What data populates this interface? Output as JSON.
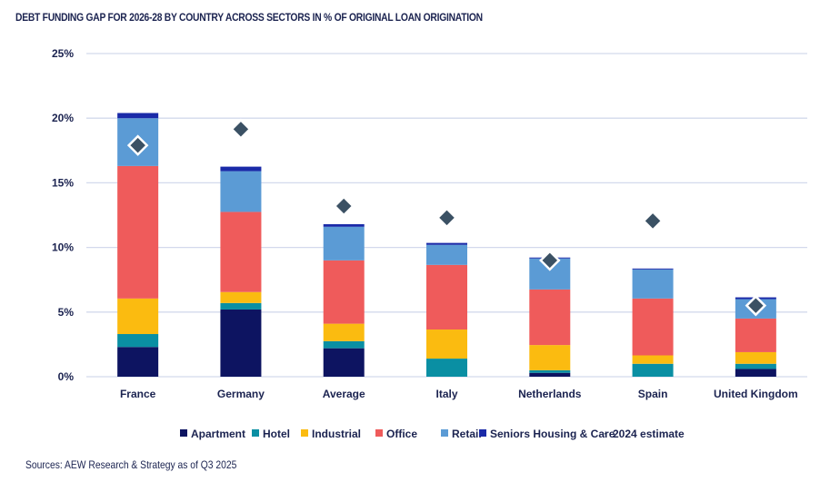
{
  "title": "DEBT FUNDING GAP FOR 2026-28 BY COUNTRY ACROSS SECTORS IN % OF ORIGINAL LOAN ORIGINATION",
  "source": "Sources: AEW Research & Strategy as of Q3 2025",
  "chart_data": {
    "type": "bar",
    "stacked": true,
    "title": "DEBT FUNDING GAP FOR 2026-28 BY COUNTRY ACROSS SECTORS IN % OF ORIGINAL LOAN ORIGINATION",
    "xlabel": "",
    "ylabel": "",
    "ylim": [
      0,
      25
    ],
    "yticks": [
      0,
      5,
      10,
      15,
      20,
      25
    ],
    "ytick_labels": [
      "0%",
      "5%",
      "10%",
      "15%",
      "20%",
      "25%"
    ],
    "grid": true,
    "legend_position": "bottom",
    "categories": [
      "France",
      "Germany",
      "Average",
      "Italy",
      "Netherlands",
      "Spain",
      "United Kingdom"
    ],
    "series": [
      {
        "name": "Apartment",
        "color": "#0d1461",
        "values": [
          2.3,
          5.2,
          2.2,
          0.0,
          0.3,
          0.0,
          0.6
        ]
      },
      {
        "name": "Hotel",
        "color": "#0a8fa3",
        "values": [
          1.0,
          0.5,
          0.55,
          1.4,
          0.2,
          1.0,
          0.4
        ]
      },
      {
        "name": "Industrial",
        "color": "#fbbb10",
        "values": [
          2.75,
          0.85,
          1.35,
          2.25,
          1.95,
          0.65,
          0.9
        ]
      },
      {
        "name": "Office",
        "color": "#ef5b5b",
        "values": [
          10.25,
          6.2,
          4.9,
          5.0,
          4.3,
          4.4,
          2.6
        ]
      },
      {
        "name": "Retail",
        "color": "#5b9bd5",
        "values": [
          3.7,
          3.15,
          2.6,
          1.55,
          2.4,
          2.25,
          1.5
        ]
      },
      {
        "name": "Seniors Housing & Care",
        "color": "#1a2aa8",
        "values": [
          0.4,
          0.35,
          0.2,
          0.15,
          0.07,
          0.07,
          0.14
        ]
      }
    ],
    "markers": {
      "name": "2024 estimate",
      "color": "#3b5164",
      "values": [
        17.9,
        19.15,
        13.2,
        12.3,
        9.0,
        12.05,
        5.5
      ]
    }
  }
}
